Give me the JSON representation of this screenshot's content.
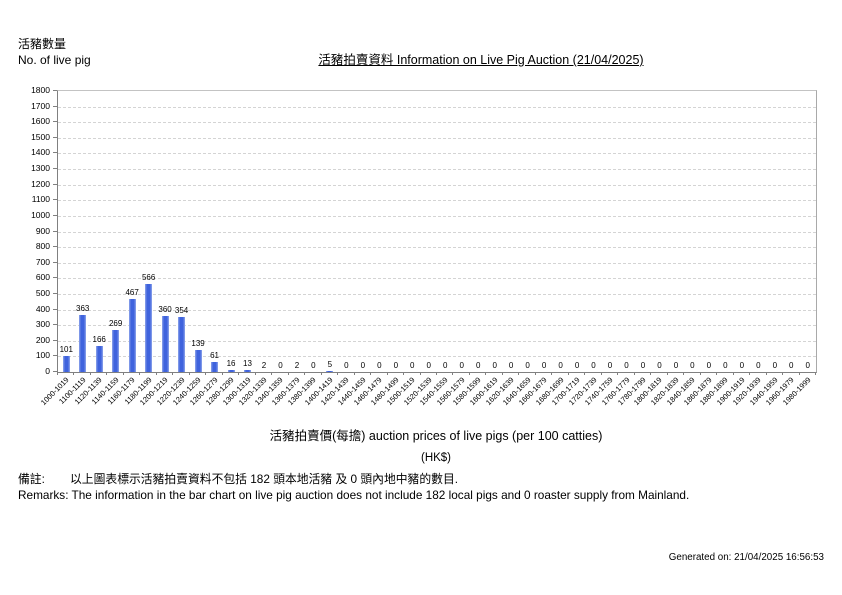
{
  "chart_data": {
    "type": "bar",
    "title": "活豬拍賣資料 Information on Live Pig Auction (21/04/2025)",
    "ylabel_zh": "活豬數量",
    "ylabel_en": "No. of live pig",
    "xlabel": "活豬拍賣價(每擔) auction prices of live pigs (per 100 catties)",
    "xlabel_unit": "(HK$)",
    "ylim": [
      0,
      1800
    ],
    "ytick_step": 100,
    "grid": "horizontal-dashed",
    "legend": "none",
    "bar_color": "#3f63dd",
    "categories": [
      "1000-1019",
      "1100-1119",
      "1120-1139",
      "1140-1159",
      "1160-1179",
      "1180-1199",
      "1200-1219",
      "1220-1239",
      "1240-1259",
      "1260-1279",
      "1280-1299",
      "1300-1319",
      "1320-1339",
      "1340-1359",
      "1360-1379",
      "1380-1399",
      "1400-1419",
      "1420-1439",
      "1440-1459",
      "1460-1479",
      "1480-1499",
      "1500-1519",
      "1520-1539",
      "1540-1559",
      "1560-1579",
      "1580-1599",
      "1600-1619",
      "1620-1639",
      "1640-1659",
      "1660-1679",
      "1680-1699",
      "1700-1719",
      "1720-1739",
      "1740-1759",
      "1760-1779",
      "1780-1799",
      "1800-1819",
      "1820-1839",
      "1840-1859",
      "1860-1879",
      "1880-1899",
      "1900-1919",
      "1920-1939",
      "1940-1959",
      "1960-1979",
      "1980-1999"
    ],
    "values": [
      101,
      363,
      166,
      269,
      467,
      566,
      360,
      354,
      139,
      61,
      16,
      13,
      2,
      0,
      2,
      0,
      5,
      0,
      0,
      0,
      0,
      0,
      0,
      0,
      0,
      0,
      0,
      0,
      0,
      0,
      0,
      0,
      0,
      0,
      0,
      0,
      0,
      0,
      0,
      0,
      0,
      0,
      0,
      0,
      0,
      0
    ]
  },
  "footer": {
    "remark_label": "備註:",
    "remark_zh": "以上圖表標示活豬拍賣資料不包括 182 頭本地活豬 及 0 頭內地中豬的數目.",
    "remark_en": "Remarks: The information in the bar chart on live pig auction does not include 182 local pigs and 0 roaster supply from Mainland.",
    "generated": "Generated on: 21/04/2025 16:56:53"
  }
}
